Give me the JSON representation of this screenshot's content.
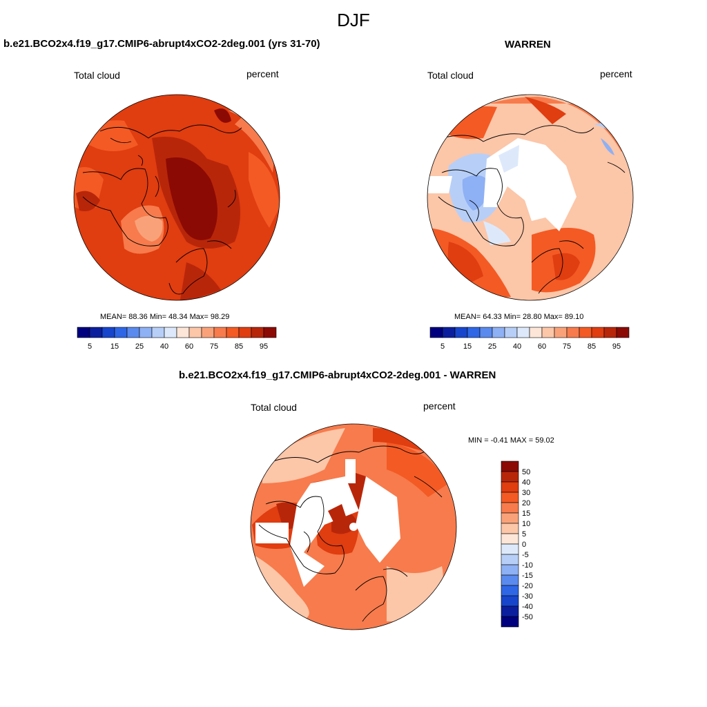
{
  "figure_title": "DJF",
  "panels": [
    {
      "title": "b.e21.BCO2x4.f19_g17.CMIP6-abrupt4xCO2-2deg.001 (yrs 31-70)",
      "left_label": "Total cloud",
      "right_label": "percent",
      "stats": "MEAN=  88.36  Min=  48.34  Max=  98.29",
      "field": {
        "mean": 88.36,
        "min": 48.34,
        "max": 98.29
      }
    },
    {
      "title": "WARREN",
      "left_label": "Total cloud",
      "right_label": "percent",
      "stats": "MEAN=  64.33  Min=  28.80  Max=  89.10",
      "field": {
        "mean": 64.33,
        "min": 28.8,
        "max": 89.1
      }
    },
    {
      "title": "b.e21.BCO2x4.f19_g17.CMIP6-abrupt4xCO2-2deg.001 - WARREN",
      "left_label": "Total cloud",
      "right_label": "percent",
      "stats": "MIN =  -0.41 MAX =  59.02",
      "field": {
        "min": -0.41,
        "max": 59.02
      }
    }
  ],
  "colorbar_abs": {
    "ticks": [
      "5",
      "15",
      "25",
      "40",
      "60",
      "75",
      "85",
      "95"
    ],
    "colors": [
      "#00007f",
      "#0b1f9e",
      "#1746cc",
      "#2e66e6",
      "#5a8aee",
      "#8eb0f4",
      "#b7cff7",
      "#dde9fb",
      "#fde6d8",
      "#fcc6a8",
      "#f9a27a",
      "#f77b4c",
      "#f45a24",
      "#e03d10",
      "#b8260a",
      "#8c0a04"
    ]
  },
  "colorbar_diff": {
    "ticks": [
      "50",
      "40",
      "30",
      "20",
      "15",
      "10",
      "5",
      "0",
      "-5",
      "-10",
      "-15",
      "-20",
      "-30",
      "-40",
      "-50"
    ],
    "colors": [
      "#8c0a04",
      "#b8260a",
      "#e03d10",
      "#f45a24",
      "#f77b4c",
      "#f9a27a",
      "#fcc6a8",
      "#fde6d8",
      "#dde9fb",
      "#b7cff7",
      "#8eb0f4",
      "#5a8aee",
      "#2e66e6",
      "#1746cc",
      "#0b1f9e",
      "#00007f"
    ]
  }
}
